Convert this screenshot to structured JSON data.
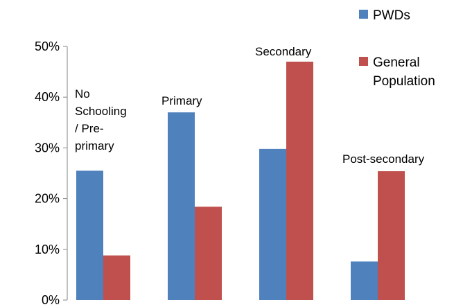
{
  "chart_data": {
    "type": "bar",
    "categories": [
      "No Schooling / Pre-primary",
      "Primary",
      "Secondary",
      "Post-secondary"
    ],
    "category_label_lines": [
      [
        "No",
        "Schooling",
        "/ Pre-",
        "primary"
      ],
      [
        "Primary"
      ],
      [
        "Secondary"
      ],
      [
        "Post-secondary"
      ]
    ],
    "series": [
      {
        "name": "PWDs",
        "values": [
          25.5,
          37.0,
          29.8,
          7.6
        ],
        "color": "#4F81BD"
      },
      {
        "name": "General Population",
        "values": [
          8.8,
          18.4,
          47.0,
          25.4
        ],
        "color": "#C0504D"
      }
    ],
    "legend_label_lines": [
      [
        "PWDs"
      ],
      [
        "General",
        "Population"
      ]
    ],
    "ylim": [
      0,
      50
    ],
    "yticks": [
      "0%",
      "10%",
      "20%",
      "30%",
      "40%",
      "50%"
    ],
    "y_unit": "percent",
    "grid": false,
    "legend_position": "top-right"
  }
}
